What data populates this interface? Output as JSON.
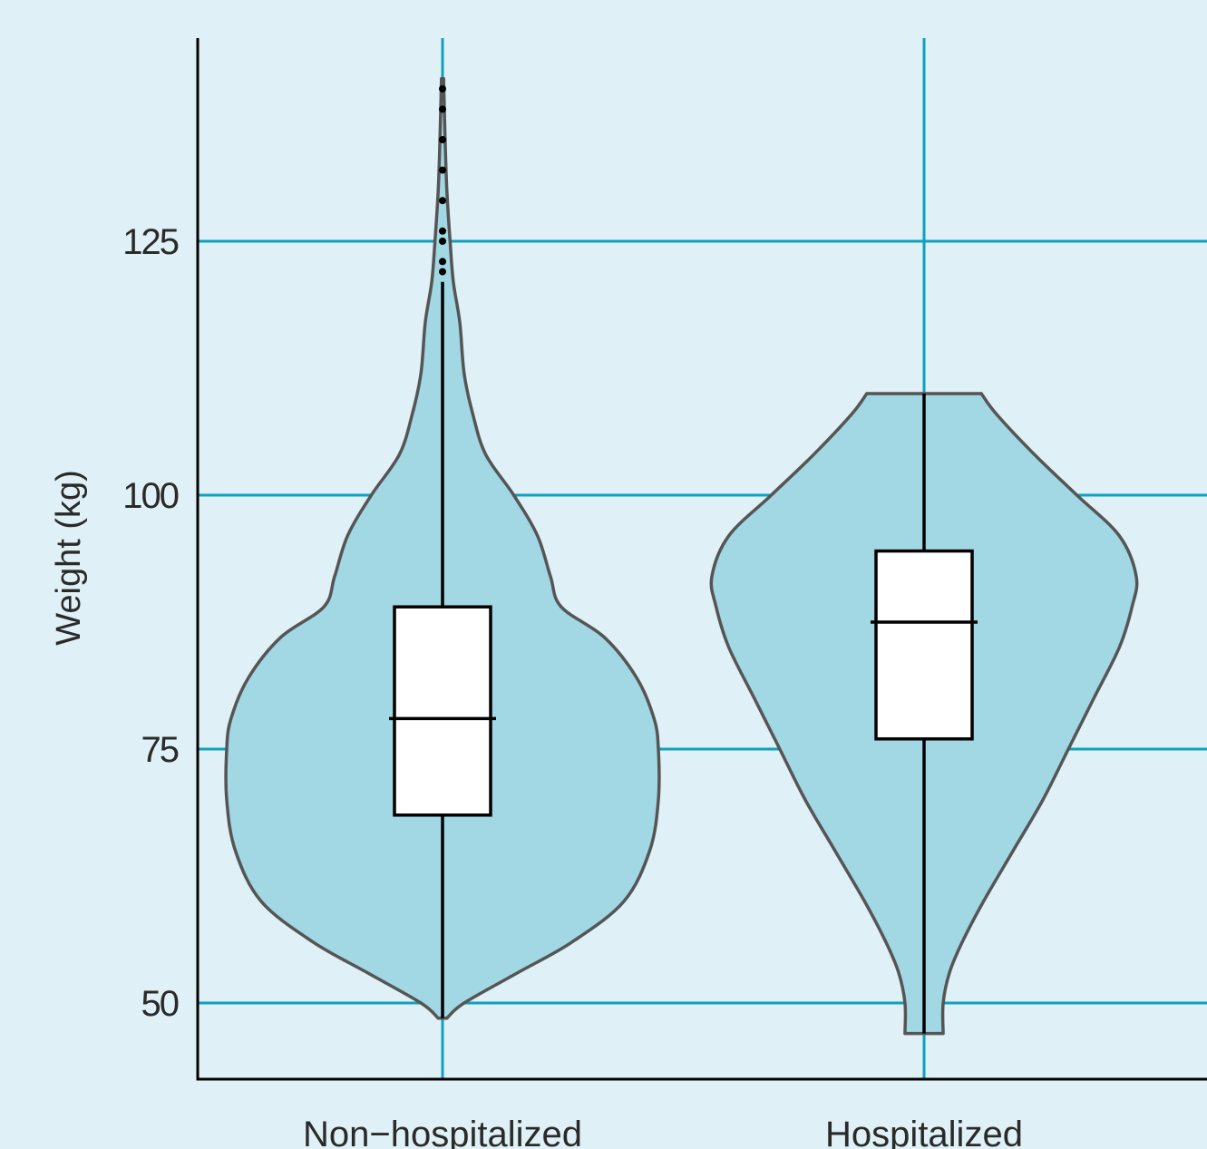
{
  "chart_data": {
    "type": "violin",
    "ylabel": "Weight (kg)",
    "yticks": [
      50,
      75,
      100,
      125
    ],
    "ylim": [
      42.5,
      145
    ],
    "grid": true,
    "background_color": "#dff0f6",
    "grid_color": "#0fa0c0",
    "violin_fill": "#a2d7e4",
    "violin_stroke": "#555555",
    "categories": [
      "Non−hospitalized",
      "Hospitalized"
    ],
    "series": [
      {
        "category": "Non−hospitalized",
        "min": 48.5,
        "q1": 68.5,
        "median": 78,
        "q3": 89,
        "max": 121,
        "outliers": [
          122,
          123,
          125,
          126,
          129,
          132,
          135,
          138,
          140
        ],
        "density": [
          [
            48.5,
            0.02
          ],
          [
            50,
            0.1
          ],
          [
            53,
            0.35
          ],
          [
            56,
            0.6
          ],
          [
            60,
            0.84
          ],
          [
            65,
            0.96
          ],
          [
            70,
            1.0
          ],
          [
            75,
            1.0
          ],
          [
            78,
            0.98
          ],
          [
            82,
            0.9
          ],
          [
            86,
            0.75
          ],
          [
            89,
            0.55
          ],
          [
            92,
            0.5
          ],
          [
            96,
            0.44
          ],
          [
            100,
            0.33
          ],
          [
            104,
            0.2
          ],
          [
            108,
            0.14
          ],
          [
            112,
            0.1
          ],
          [
            117,
            0.08
          ],
          [
            121,
            0.05
          ],
          [
            125,
            0.035
          ],
          [
            130,
            0.02
          ],
          [
            135,
            0.012
          ],
          [
            141,
            0.005
          ]
        ]
      },
      {
        "category": "Hospitalized",
        "min": 47,
        "q1": 76,
        "median": 87.5,
        "q3": 94.5,
        "max": 110,
        "outliers": [],
        "density": [
          [
            47,
            0.09
          ],
          [
            50,
            0.09
          ],
          [
            53,
            0.12
          ],
          [
            56,
            0.18
          ],
          [
            60,
            0.28
          ],
          [
            65,
            0.42
          ],
          [
            70,
            0.56
          ],
          [
            75,
            0.68
          ],
          [
            80,
            0.8
          ],
          [
            85,
            0.92
          ],
          [
            89,
            0.98
          ],
          [
            92,
            1.0
          ],
          [
            96,
            0.92
          ],
          [
            100,
            0.72
          ],
          [
            104,
            0.52
          ],
          [
            108,
            0.34
          ],
          [
            110,
            0.27
          ]
        ]
      }
    ]
  }
}
